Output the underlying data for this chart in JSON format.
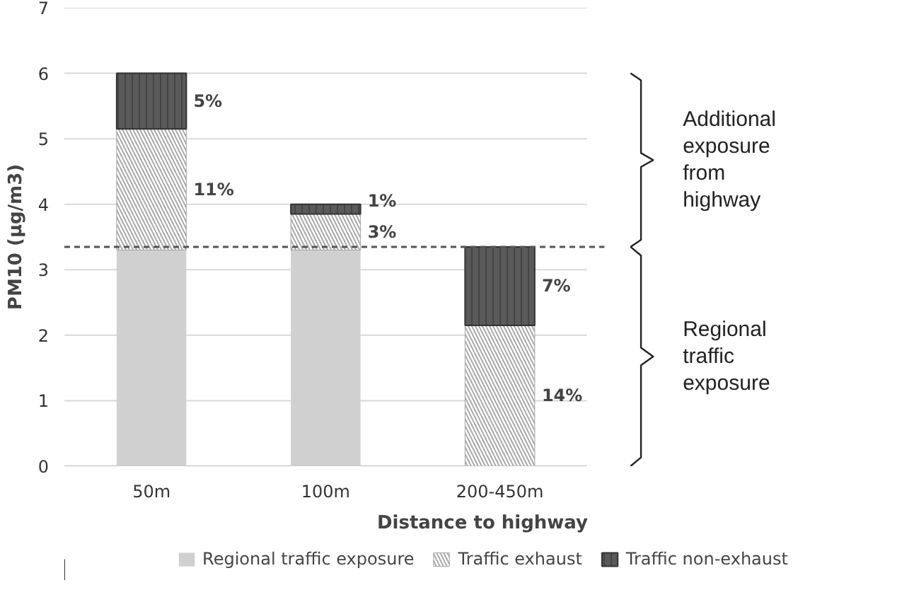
{
  "chart_data": {
    "type": "bar",
    "stacked": true,
    "xlabel": "Distance to highway",
    "ylabel": "PM10 (µg/m3)",
    "categories": [
      "50m",
      "100m",
      "200-450m"
    ],
    "series": [
      {
        "name": "Regional traffic exposure",
        "color": "#d0d0d0",
        "values": [
          3.3,
          3.3,
          0
        ]
      },
      {
        "name": "Traffic exhaust",
        "color": "#a6a6a6",
        "values": [
          1.85,
          0.55,
          2.15
        ]
      },
      {
        "name": "Traffic non-exhaust",
        "color": "#5a5a5a",
        "values": [
          0.85,
          0.15,
          1.2
        ]
      }
    ],
    "ylim": [
      0,
      7
    ],
    "yticks": [
      0,
      1,
      2,
      3,
      4,
      5,
      6,
      7
    ],
    "grid": "y",
    "legend": "bottom",
    "ref_lines": [
      {
        "axis": "y",
        "value": 3.35,
        "line_style": "dashed",
        "color": "#555555"
      }
    ],
    "annotations": [
      "5%",
      "11%",
      "1%",
      "3%",
      "7%",
      "14%",
      "Additional exposure from highway",
      "Regional traffic exposure"
    ]
  }
}
